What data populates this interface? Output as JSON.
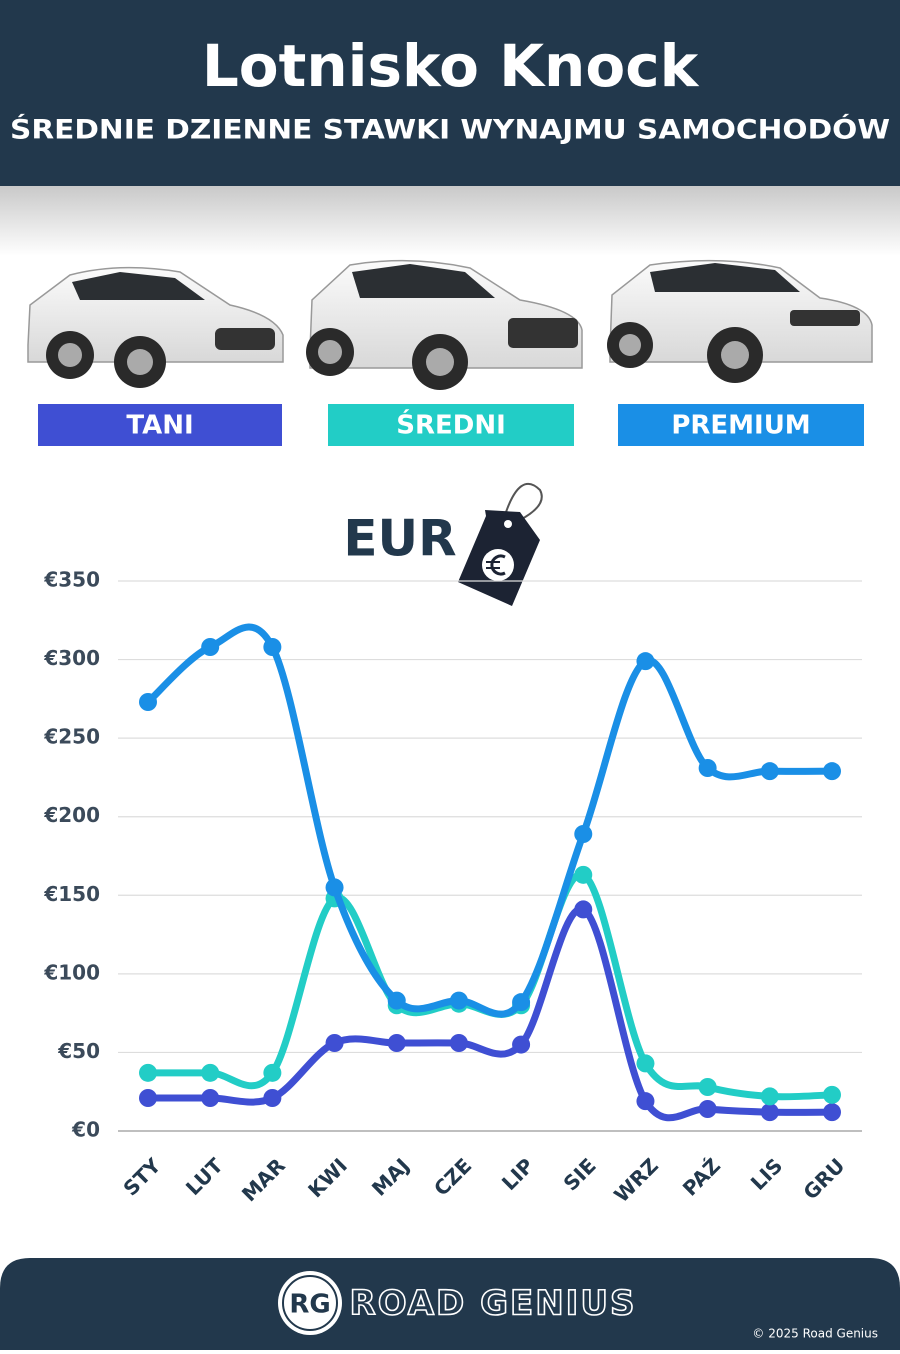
{
  "chart_data": {
    "type": "line",
    "title": "Lotnisko Knock",
    "subtitle": "ŚREDNIE DZIENNE STAWKI WYNAJMU SAMOCHODÓW",
    "ylabel": "EUR",
    "categories": [
      "STY",
      "LUT",
      "MAR",
      "KWI",
      "MAJ",
      "CZE",
      "LIP",
      "SIE",
      "WRZ",
      "PAŹ",
      "LIS",
      "GRU"
    ],
    "series": [
      {
        "name": "TANI",
        "color": "#3f4fd3",
        "values": [
          21,
          21,
          21,
          56,
          56,
          56,
          55,
          141,
          19,
          14,
          12,
          12
        ]
      },
      {
        "name": "ŚREDNI",
        "color": "#22cdc6",
        "values": [
          37,
          37,
          37,
          148,
          80,
          81,
          80,
          163,
          43,
          28,
          22,
          23
        ]
      },
      {
        "name": "PREMIUM",
        "color": "#1a8fe6",
        "values": [
          273,
          308,
          308,
          155,
          83,
          83,
          82,
          189,
          299,
          231,
          229,
          229
        ]
      }
    ],
    "ylim": [
      0,
      350
    ],
    "yticks": [
      {
        "value": 0,
        "label": "€0"
      },
      {
        "value": 50,
        "label": "€50"
      },
      {
        "value": 100,
        "label": "€100"
      },
      {
        "value": 150,
        "label": "€150"
      },
      {
        "value": 200,
        "label": "€200"
      },
      {
        "value": 250,
        "label": "€250"
      },
      {
        "value": 300,
        "label": "€300"
      },
      {
        "value": 350,
        "label": "€350"
      }
    ],
    "grid": true
  },
  "footer": {
    "logo": "RG",
    "brand": "ROAD GENIUS",
    "copyright": "© 2025 Road Genius"
  }
}
